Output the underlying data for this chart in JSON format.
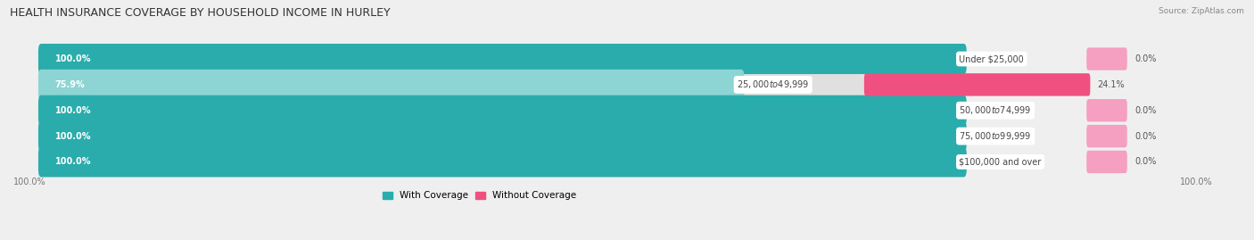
{
  "title": "HEALTH INSURANCE COVERAGE BY HOUSEHOLD INCOME IN HURLEY",
  "source": "Source: ZipAtlas.com",
  "categories": [
    "Under $25,000",
    "$25,000 to $49,999",
    "$50,000 to $74,999",
    "$75,000 to $99,999",
    "$100,000 and over"
  ],
  "with_coverage": [
    100.0,
    75.9,
    100.0,
    100.0,
    100.0
  ],
  "without_coverage": [
    0.0,
    24.1,
    0.0,
    0.0,
    0.0
  ],
  "color_with_dark": "#2aacac",
  "color_with_light": "#8dd4d4",
  "color_without_dark": "#f05080",
  "color_without_light": "#f5a0c0",
  "bg_color": "#efefef",
  "bar_bg_color": "#e0e0e0",
  "title_fontsize": 9,
  "label_fontsize": 7,
  "tick_fontsize": 7,
  "source_fontsize": 6.5,
  "legend_fontsize": 7.5,
  "cat_label_fontsize": 7
}
